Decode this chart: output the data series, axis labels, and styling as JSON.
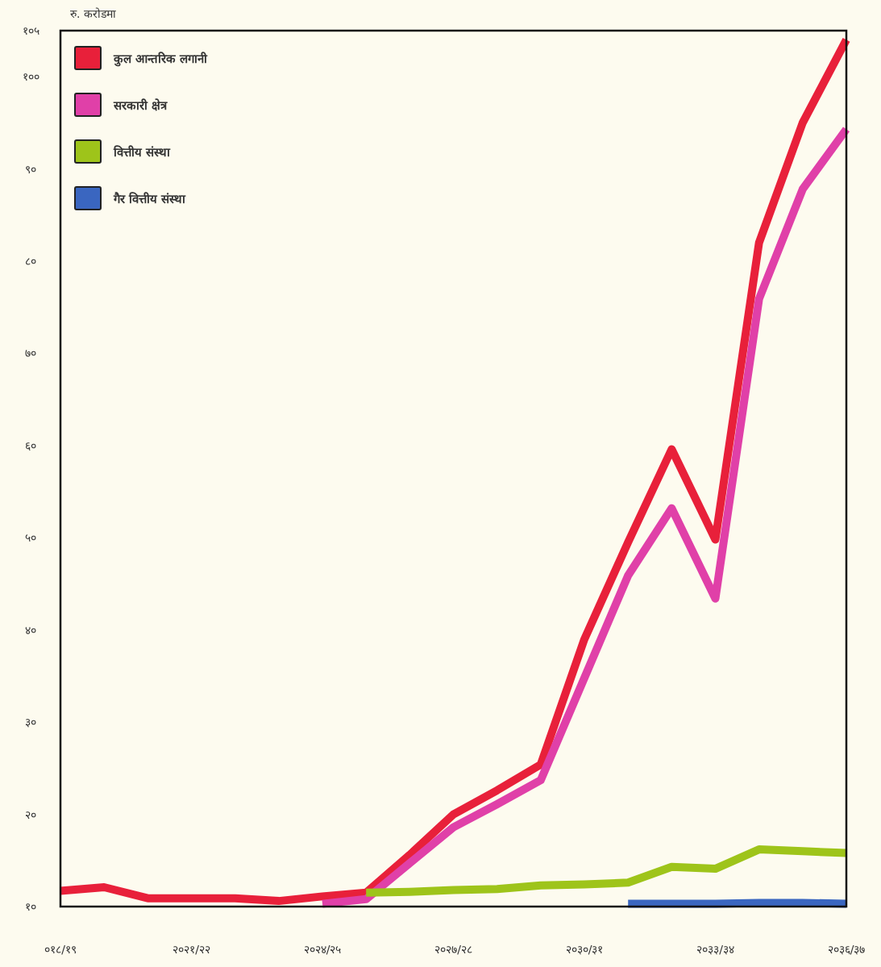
{
  "chart_data": {
    "type": "line",
    "ylabel": "रु. करोडमा",
    "categories": [
      "०१८/१९",
      null,
      null,
      "२०२१/२२",
      null,
      null,
      "२०२४/२५",
      null,
      null,
      "२०२७/२८",
      null,
      null,
      "२०३०/३१",
      null,
      null,
      "२०३३/३४",
      null,
      null,
      "२०३६/३७"
    ],
    "series": [
      {
        "name": "कुल आन्तरिक लगानी",
        "color": "#e8203a",
        "values": [
          11.7,
          12.1,
          10.9,
          10.9,
          10.9,
          10.6,
          11.1,
          11.5,
          15.6,
          20.0,
          22.6,
          25.4,
          39.0,
          49.5,
          59.6,
          49.8,
          82,
          95,
          104
        ]
      },
      {
        "name": "सरकारी क्षेत्र",
        "color": "#e040a8",
        "values": [
          null,
          null,
          null,
          null,
          null,
          null,
          10.3,
          10.8,
          14.7,
          18.6,
          21.1,
          23.7,
          34.8,
          45.9,
          53.2,
          43.4,
          75.9,
          87.8,
          94.3
        ]
      },
      {
        "name": "वित्तीय संस्था",
        "color": "#9ec41a",
        "values": [
          null,
          null,
          null,
          null,
          null,
          null,
          null,
          11.5,
          11.6,
          11.8,
          11.9,
          12.3,
          12.4,
          12.6,
          14.3,
          14.1,
          16.2,
          16.0,
          15.8
        ]
      },
      {
        "name": "गैर वित्तीय संस्था",
        "color": "#3a66c0",
        "values": [
          null,
          null,
          null,
          null,
          null,
          null,
          null,
          null,
          null,
          null,
          null,
          null,
          null,
          10.3,
          10.3,
          10.3,
          10.4,
          10.4,
          10.3
        ]
      }
    ],
    "ylim": [
      10,
      105
    ],
    "yticks": [
      {
        "value": 10,
        "label": "१०"
      },
      {
        "value": 20,
        "label": "२०"
      },
      {
        "value": 30,
        "label": "३०"
      },
      {
        "value": 40,
        "label": "४०"
      },
      {
        "value": 50,
        "label": "५०"
      },
      {
        "value": 60,
        "label": "६०"
      },
      {
        "value": 70,
        "label": "७०"
      },
      {
        "value": 80,
        "label": "८०"
      },
      {
        "value": 90,
        "label": "९०"
      },
      {
        "value": 100,
        "label": "१००"
      },
      {
        "value": 105,
        "label": "१०५"
      }
    ],
    "grid": false,
    "legend": "top left",
    "marker": "none",
    "line_style": "solid"
  }
}
